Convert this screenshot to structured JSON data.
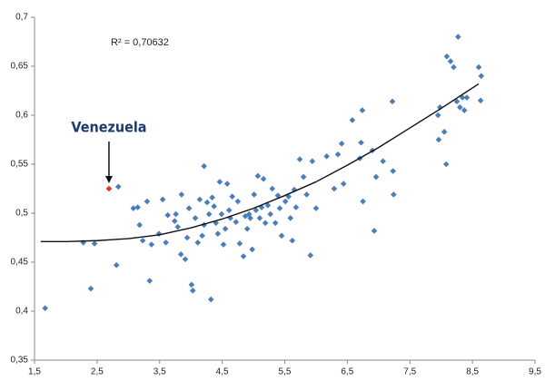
{
  "chart_data": {
    "type": "scatter",
    "annotation": "R² = 0,70632",
    "color": "#4a7ebb",
    "xlim": [
      1.5,
      9.5
    ],
    "xticks": [
      {
        "value": 1.5,
        "label": "1,5"
      },
      {
        "value": 2.5,
        "label": "2,5"
      },
      {
        "value": 3.5,
        "label": "3,5"
      },
      {
        "value": 4.5,
        "label": "4,5"
      },
      {
        "value": 5.5,
        "label": "5,5"
      },
      {
        "value": 6.5,
        "label": "6,5"
      },
      {
        "value": 7.5,
        "label": "7,5"
      },
      {
        "value": 8.5,
        "label": "8,5"
      },
      {
        "value": 9.5,
        "label": "9,5"
      }
    ],
    "ylim": [
      0.35,
      0.7
    ],
    "yticks": [
      {
        "value": 0.35,
        "label": "0,35"
      },
      {
        "value": 0.4,
        "label": "0,4"
      },
      {
        "value": 0.45,
        "label": "0,45"
      },
      {
        "value": 0.5,
        "label": "0,5"
      },
      {
        "value": 0.55,
        "label": "0,55"
      },
      {
        "value": 0.6,
        "label": "0,6"
      },
      {
        "value": 0.65,
        "label": "0,65"
      },
      {
        "value": 0.7,
        "label": "0,7"
      }
    ],
    "x": [
      1.67,
      2.28,
      2.46,
      2.4,
      2.81,
      2.84,
      3.08,
      3.15,
      3.18,
      3.23,
      3.3,
      3.34,
      3.37,
      3.49,
      3.55,
      3.6,
      3.63,
      3.74,
      3.76,
      3.79,
      3.85,
      3.84,
      3.91,
      3.94,
      3.97,
      4.01,
      4.03,
      4.07,
      4.11,
      4.14,
      4.18,
      4.21,
      4.21,
      4.26,
      4.29,
      4.32,
      4.34,
      4.37,
      4.4,
      4.43,
      4.46,
      4.49,
      4.52,
      4.55,
      4.58,
      4.61,
      4.63,
      4.66,
      4.72,
      4.75,
      4.78,
      4.84,
      4.87,
      4.9,
      4.93,
      4.95,
      4.98,
      5.01,
      5.04,
      5.07,
      5.1,
      5.13,
      5.16,
      5.19,
      5.23,
      5.27,
      5.3,
      5.35,
      5.39,
      5.42,
      5.45,
      5.51,
      5.56,
      5.59,
      5.62,
      5.65,
      5.68,
      5.74,
      5.8,
      5.85,
      5.91,
      5.94,
      6.0,
      6.17,
      6.29,
      6.35,
      6.41,
      6.44,
      6.58,
      6.7,
      6.72,
      6.74,
      6.75,
      6.9,
      6.93,
      6.96,
      7.07,
      7.22,
      7.23,
      7.24,
      7.95,
      7.98,
      7.96,
      8.05,
      8.08,
      8.09,
      8.15,
      8.2,
      8.27,
      8.25,
      8.3,
      8.34,
      8.37,
      8.41,
      8.6,
      8.64,
      8.63
    ],
    "values": [
      0.403,
      0.47,
      0.469,
      0.423,
      0.447,
      0.527,
      0.505,
      0.506,
      0.488,
      0.472,
      0.512,
      0.431,
      0.468,
      0.479,
      0.514,
      0.47,
      0.498,
      0.492,
      0.499,
      0.486,
      0.519,
      0.458,
      0.453,
      0.475,
      0.505,
      0.427,
      0.421,
      0.495,
      0.47,
      0.514,
      0.477,
      0.548,
      0.488,
      0.511,
      0.499,
      0.412,
      0.516,
      0.507,
      0.49,
      0.479,
      0.532,
      0.499,
      0.468,
      0.484,
      0.53,
      0.503,
      0.495,
      0.517,
      0.491,
      0.512,
      0.469,
      0.456,
      0.497,
      0.484,
      0.499,
      0.495,
      0.463,
      0.519,
      0.503,
      0.538,
      0.495,
      0.506,
      0.535,
      0.49,
      0.508,
      0.499,
      0.525,
      0.49,
      0.518,
      0.505,
      0.477,
      0.512,
      0.517,
      0.495,
      0.472,
      0.524,
      0.506,
      0.555,
      0.537,
      0.519,
      0.457,
      0.553,
      0.505,
      0.558,
      0.525,
      0.56,
      0.571,
      0.53,
      0.595,
      0.556,
      0.572,
      0.605,
      0.512,
      0.564,
      0.482,
      0.537,
      0.553,
      0.614,
      0.543,
      0.519,
      0.6,
      0.608,
      0.575,
      0.583,
      0.55,
      0.66,
      0.655,
      0.649,
      0.68,
      0.614,
      0.608,
      0.618,
      0.605,
      0.618,
      0.649,
      0.64,
      0.615
    ],
    "highlight": {
      "label": "Venezuela",
      "x": 2.69,
      "value": 0.525,
      "color": "#e03030"
    },
    "trendline": {
      "color": "#111111",
      "x": [
        1.6,
        2,
        2.5,
        3,
        3.5,
        4,
        4.5,
        5,
        5.5,
        6,
        6.5,
        7,
        7.5,
        8,
        8.6
      ],
      "values": [
        0.471,
        0.471,
        0.472,
        0.474,
        0.478,
        0.485,
        0.494,
        0.505,
        0.518,
        0.532,
        0.549,
        0.567,
        0.587,
        0.607,
        0.632
      ]
    }
  }
}
